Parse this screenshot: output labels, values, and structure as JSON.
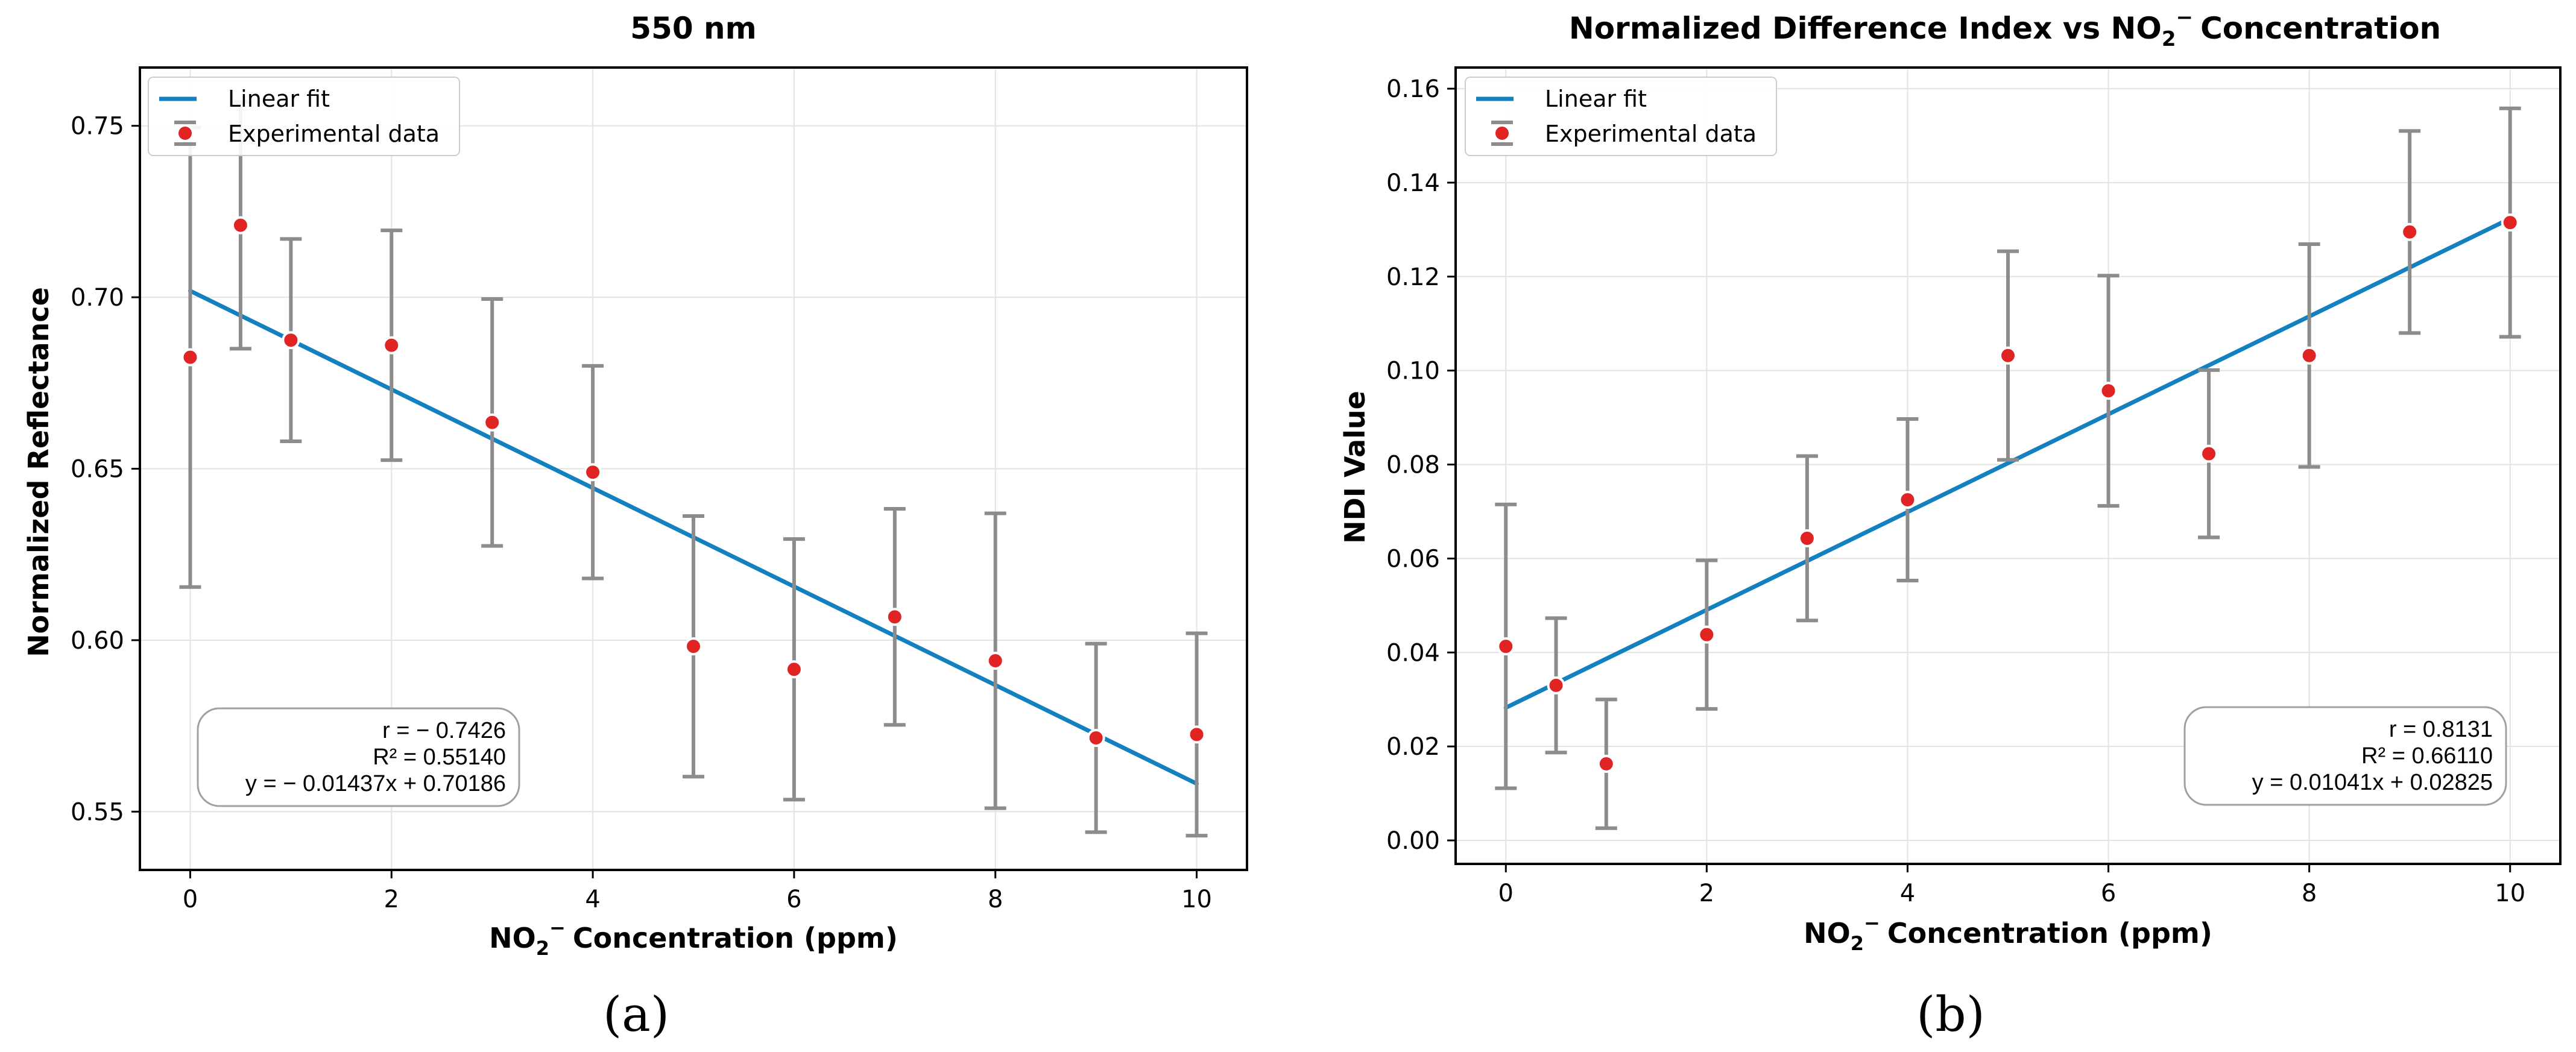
{
  "colors": {
    "fit": "#1380c0",
    "point": "#e02424",
    "errorbar": "#8c8c8c",
    "grid": "#e3e3e3"
  },
  "chart_data": [
    {
      "type": "scatter",
      "panel_label": "(a)",
      "title": "550 nm",
      "xlabel": "NO₂⁻ Concentration (ppm)",
      "ylabel": "Normalized Reflectance",
      "xlim": [
        -0.5,
        10.5
      ],
      "ylim": [
        0.533,
        0.767
      ],
      "xticks": [
        0,
        2,
        4,
        6,
        8,
        10
      ],
      "yticks": [
        0.55,
        0.6,
        0.65,
        0.7,
        0.75
      ],
      "ytick_labels": [
        "0.55",
        "0.60",
        "0.65",
        "0.70",
        "0.75"
      ],
      "grid": true,
      "legend_position": "top-left",
      "legend": [
        "Linear fit",
        "Experimental data"
      ],
      "x": [
        0,
        0.5,
        1,
        2,
        3,
        4,
        5,
        6,
        7,
        8,
        9,
        10
      ],
      "y": [
        0.6825,
        0.721,
        0.6875,
        0.686,
        0.6635,
        0.649,
        0.5982,
        0.5915,
        0.6068,
        0.594,
        0.5715,
        0.5725
      ],
      "yerr": [
        0.067,
        0.036,
        0.0295,
        0.0335,
        0.036,
        0.031,
        0.038,
        0.038,
        0.0315,
        0.043,
        0.0275,
        0.0295
      ],
      "fit": {
        "slope": -0.01437,
        "intercept": 0.70186,
        "x_range": [
          0,
          10
        ]
      },
      "annotation": [
        "r = − 0.7426",
        "R² = 0.55140",
        "y = − 0.01437x + 0.70186"
      ]
    },
    {
      "type": "scatter",
      "panel_label": "(b)",
      "title": "Normalized Difference Index vs NO₂⁻ Concentration",
      "xlabel": "NO₂⁻ Concentration (ppm)",
      "ylabel": "NDI Value",
      "xlim": [
        -0.5,
        10.5
      ],
      "ylim": [
        -0.005,
        0.1645
      ],
      "xticks": [
        0,
        2,
        4,
        6,
        8,
        10
      ],
      "yticks": [
        0.0,
        0.02,
        0.04,
        0.06,
        0.08,
        0.1,
        0.12,
        0.14,
        0.16
      ],
      "ytick_labels": [
        "0.00",
        "0.02",
        "0.04",
        "0.06",
        "0.08",
        "0.10",
        "0.12",
        "0.14",
        "0.16"
      ],
      "grid": true,
      "legend_position": "top-left",
      "legend": [
        "Linear fit",
        "Experimental data"
      ],
      "x": [
        0,
        0.5,
        1,
        2,
        3,
        4,
        5,
        6,
        7,
        8,
        9,
        10
      ],
      "y": [
        0.0413,
        0.033,
        0.0163,
        0.0438,
        0.0643,
        0.0725,
        0.1032,
        0.0957,
        0.0823,
        0.1032,
        0.1295,
        0.1315
      ],
      "yerr": [
        0.0302,
        0.0143,
        0.0137,
        0.0158,
        0.0175,
        0.0172,
        0.0222,
        0.0245,
        0.0178,
        0.0237,
        0.0215,
        0.0243
      ],
      "fit": {
        "slope": 0.01041,
        "intercept": 0.02825,
        "x_range": [
          0,
          10
        ]
      },
      "annotation": [
        "r = 0.8131",
        "R² = 0.66110",
        "y = 0.01041x + 0.02825"
      ]
    }
  ]
}
